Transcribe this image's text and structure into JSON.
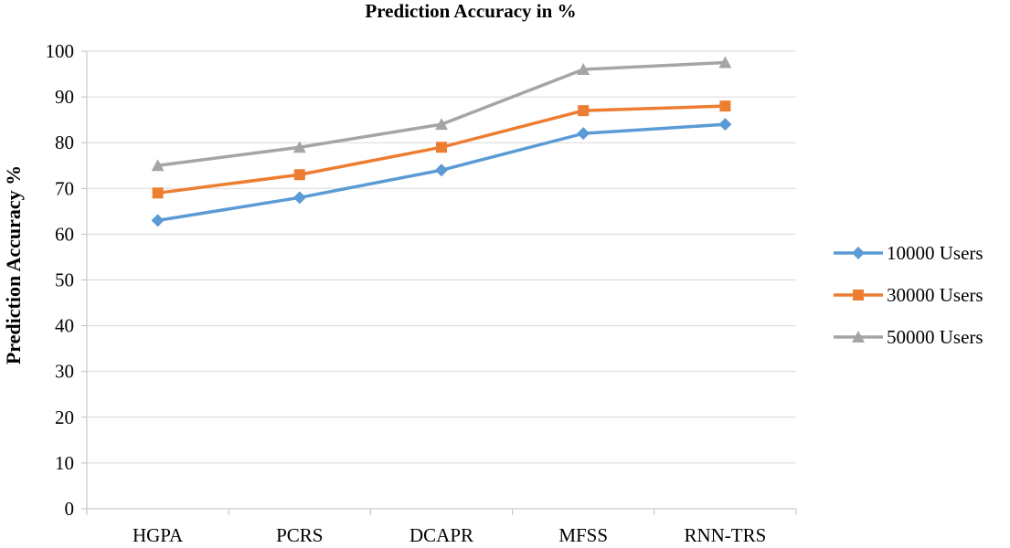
{
  "chart_data": {
    "type": "line",
    "title": "Prediction Accuracy in %",
    "xlabel": "",
    "ylabel": "Prediction Accuracy %",
    "categories": [
      "HGPA",
      "PCRS",
      "DCAPR",
      "MFSS",
      "RNN-TRS"
    ],
    "ylim": [
      0,
      100
    ],
    "yticks": [
      0,
      10,
      20,
      30,
      40,
      50,
      60,
      70,
      80,
      90,
      100
    ],
    "grid": true,
    "legend_position": "right",
    "series": [
      {
        "name": "10000 Users",
        "values": [
          63,
          68,
          74,
          82,
          84
        ],
        "color": "#5b9bd5",
        "marker": "diamond"
      },
      {
        "name": "30000 Users",
        "values": [
          69,
          73,
          79,
          87,
          88
        ],
        "color": "#ed7d31",
        "marker": "square"
      },
      {
        "name": "50000 Users",
        "values": [
          75,
          79,
          84,
          96,
          97.5
        ],
        "color": "#a5a5a5",
        "marker": "triangle"
      }
    ]
  }
}
